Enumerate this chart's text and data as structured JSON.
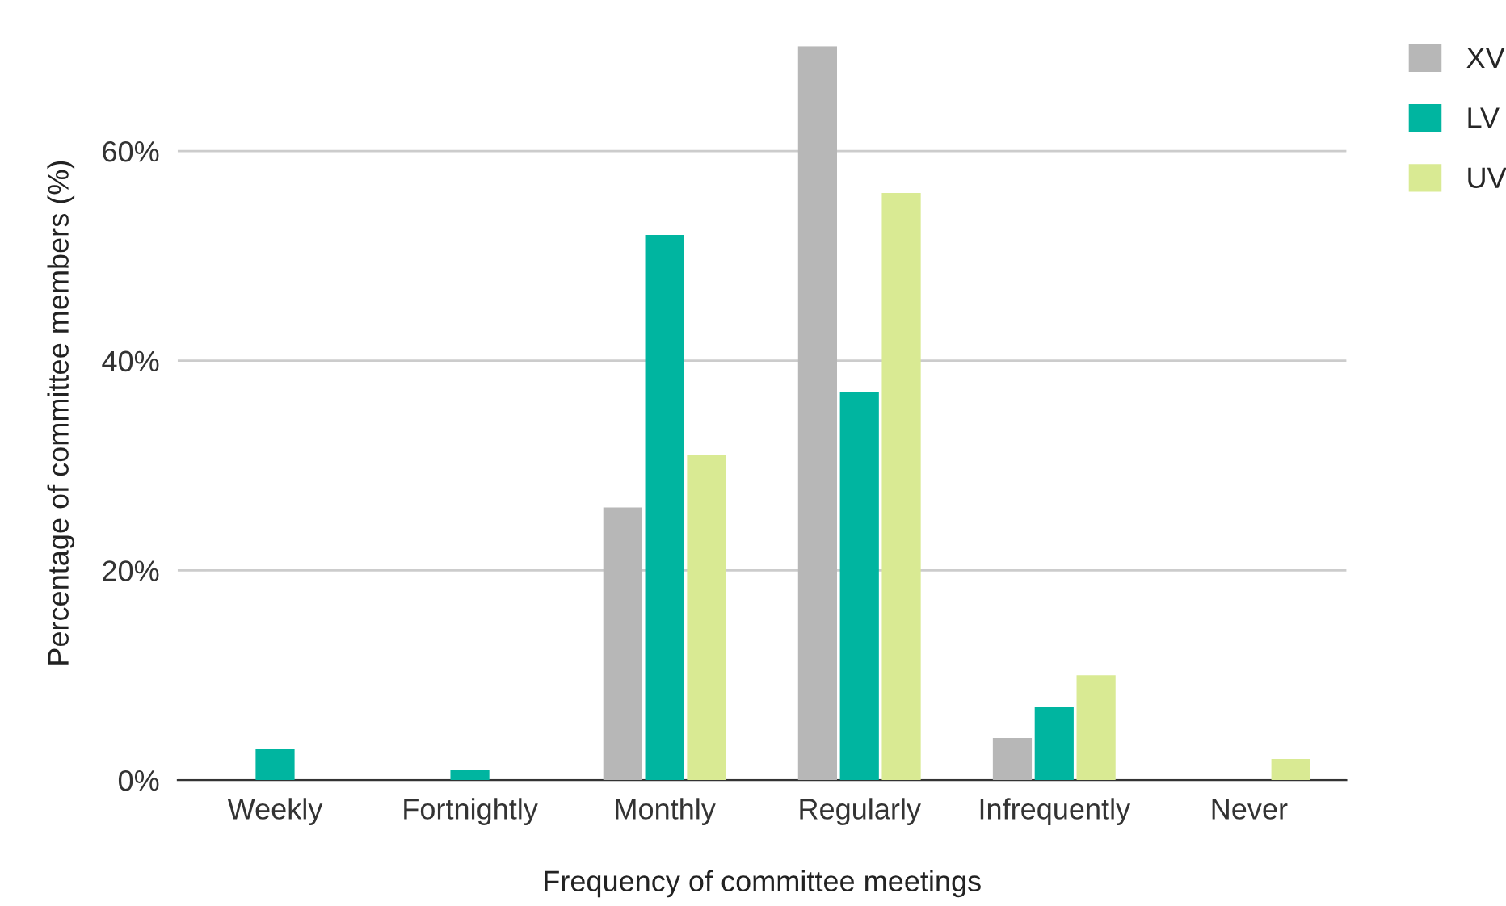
{
  "chart_data": {
    "type": "bar",
    "xlabel": "Frequency of committee meetings",
    "ylabel": "Percentage of committee members (%)",
    "categories": [
      "Weekly",
      "Fortnightly",
      "Monthly",
      "Regularly",
      "Infrequently",
      "Never"
    ],
    "series": [
      {
        "name": "XV",
        "color": "#b7b7b7",
        "values": [
          null,
          null,
          26,
          70,
          4,
          null
        ]
      },
      {
        "name": "LV",
        "color": "#00b5a0",
        "values": [
          3,
          1,
          52,
          37,
          7,
          null
        ]
      },
      {
        "name": "UV",
        "color": "#d9ea93",
        "values": [
          null,
          null,
          31,
          56,
          10,
          2
        ]
      }
    ],
    "ylim": [
      0,
      70
    ],
    "yticks": [
      {
        "value": 0,
        "label": "0%"
      },
      {
        "value": 20,
        "label": "20%"
      },
      {
        "value": 40,
        "label": "40%"
      },
      {
        "value": 60,
        "label": "60%"
      }
    ],
    "grid": "y",
    "legend": "top right"
  }
}
